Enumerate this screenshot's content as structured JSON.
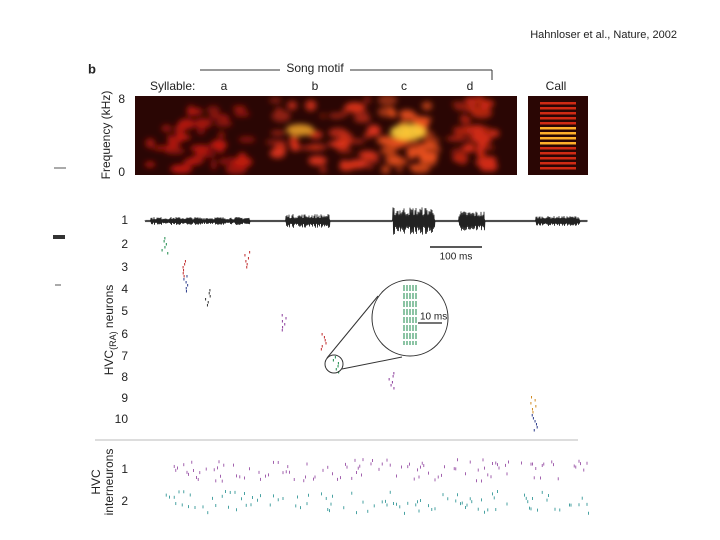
{
  "citation": "Hahnloser et al., Nature, 2002",
  "panel_label": "b",
  "song_motif": "Song motif",
  "syllable_label": "Syllable:",
  "syllables": [
    "a",
    "b",
    "c",
    "d"
  ],
  "call": "Call",
  "frequency_axis": {
    "label": "Frequency (kHz)",
    "ticks": [
      "8",
      "0"
    ]
  },
  "scale_bars": {
    "waveform": "100 ms",
    "inset": "10 ms"
  },
  "ra_neurons": {
    "label": "HVC",
    "subscript": "(RA)",
    "suffix": " neurons",
    "rows": [
      "1",
      "2",
      "3",
      "4",
      "5",
      "6",
      "7",
      "8",
      "9",
      "10"
    ]
  },
  "interneurons": {
    "label_top": "HVC",
    "label_bottom": "interneurons",
    "rows": [
      "1",
      "2"
    ]
  }
}
